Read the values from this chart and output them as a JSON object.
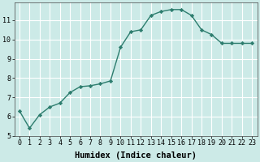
{
  "x": [
    0,
    1,
    2,
    3,
    4,
    5,
    6,
    7,
    8,
    9,
    10,
    11,
    12,
    13,
    14,
    15,
    16,
    17,
    18,
    19,
    20,
    21,
    22,
    23
  ],
  "y": [
    6.3,
    5.4,
    6.1,
    6.5,
    6.7,
    7.25,
    7.55,
    7.6,
    7.7,
    7.85,
    9.6,
    10.4,
    10.5,
    11.25,
    11.45,
    11.55,
    11.55,
    11.25,
    10.5,
    10.25,
    9.8,
    9.8,
    9.8,
    9.8
  ],
  "line_color": "#2d7d6e",
  "marker": "D",
  "marker_size": 2.2,
  "line_width": 1.0,
  "xlabel": "Humidex (Indice chaleur)",
  "xlim": [
    -0.5,
    23.5
  ],
  "ylim": [
    5,
    11.9
  ],
  "yticks": [
    5,
    6,
    7,
    8,
    9,
    10,
    11
  ],
  "xticks": [
    0,
    1,
    2,
    3,
    4,
    5,
    6,
    7,
    8,
    9,
    10,
    11,
    12,
    13,
    14,
    15,
    16,
    17,
    18,
    19,
    20,
    21,
    22,
    23
  ],
  "background_color": "#cceae7",
  "grid_color": "#ffffff",
  "xlabel_fontsize": 7.5,
  "tick_fontsize": 6.0
}
